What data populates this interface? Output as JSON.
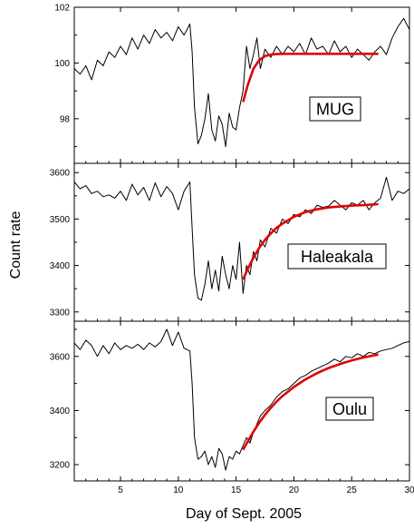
{
  "chart_data": {
    "type": "line",
    "xlabel": "Day of Sept. 2005",
    "ylabel": "Count rate",
    "xlim": [
      1,
      30
    ],
    "x_ticks": [
      5,
      10,
      15,
      20,
      25,
      30
    ],
    "colors": {
      "data": "#000000",
      "fit": "#e00000",
      "frame": "#000000"
    },
    "panels": [
      {
        "station": "MUG",
        "ylim": [
          96.4,
          102
        ],
        "y_ticks": [
          98,
          100,
          102
        ],
        "series": [
          {
            "x": [
              1,
              1.5,
              2,
              2.5,
              3,
              3.5,
              4,
              4.5,
              5,
              5.5,
              6,
              6.5,
              7,
              7.5,
              8,
              8.5,
              9,
              9.5,
              10,
              10.5,
              11,
              11.2,
              11.4,
              11.7,
              12,
              12.3,
              12.6,
              12.9,
              13.2,
              13.5,
              13.8,
              14.1,
              14.4,
              14.7,
              15,
              15.3,
              15.6,
              15.9,
              16.2,
              16.5,
              16.8,
              17.1,
              17.5,
              18,
              18.5,
              19,
              19.5,
              20,
              20.5,
              21,
              21.5,
              22,
              22.5,
              23,
              23.5,
              24,
              24.5,
              25,
              25.5,
              26,
              26.5,
              27,
              27.5,
              28,
              28.5,
              29,
              29.5,
              30
            ],
            "y": [
              99.8,
              99.6,
              99.9,
              99.4,
              100.1,
              99.9,
              100.4,
              100.2,
              100.6,
              100.3,
              100.9,
              100.5,
              101.0,
              100.7,
              101.2,
              100.9,
              101.1,
              100.8,
              101.3,
              101.0,
              101.4,
              100.4,
              98.4,
              97.1,
              97.4,
              98.0,
              98.9,
              97.6,
              97.2,
              98.1,
              97.8,
              97.0,
              98.2,
              97.7,
              97.6,
              98.4,
              99.0,
              100.6,
              99.8,
              100.3,
              100.9,
              99.8,
              100.5,
              100.2,
              100.6,
              100.3,
              100.6,
              100.4,
              100.7,
              100.3,
              100.9,
              100.5,
              100.6,
              100.3,
              100.8,
              100.4,
              100.6,
              100.2,
              100.5,
              100.3,
              100.1,
              100.4,
              100.6,
              100.3,
              100.9,
              101.3,
              101.6,
              101.2
            ]
          },
          {
            "x": [
              15.6,
              16,
              16.5,
              17,
              17.5,
              18,
              18.5,
              19,
              20,
              21,
              22,
              23,
              24,
              25,
              26,
              27.3
            ],
            "y": [
              98.6,
              99.2,
              99.8,
              100.1,
              100.25,
              100.3,
              100.32,
              100.33,
              100.33,
              100.33,
              100.33,
              100.33,
              100.33,
              100.33,
              100.33,
              100.33
            ]
          }
        ]
      },
      {
        "station": "Haleakala",
        "ylim": [
          3280,
          3620
        ],
        "y_ticks": [
          3300,
          3400,
          3500,
          3600
        ],
        "series": [
          {
            "x": [
              1,
              1.5,
              2,
              2.5,
              3,
              3.5,
              4,
              4.5,
              5,
              5.5,
              6,
              6.5,
              7,
              7.5,
              8,
              8.5,
              9,
              9.5,
              10,
              10.5,
              11,
              11.2,
              11.4,
              11.7,
              12,
              12.3,
              12.6,
              12.9,
              13.2,
              13.5,
              13.8,
              14.1,
              14.4,
              14.7,
              15,
              15.3,
              15.6,
              15.9,
              16.2,
              16.5,
              16.8,
              17.1,
              17.5,
              18,
              18.5,
              19,
              19.5,
              20,
              20.5,
              21,
              21.5,
              22,
              22.5,
              23,
              23.5,
              24,
              24.5,
              25,
              25.5,
              26,
              26.5,
              27,
              27.5,
              28,
              28.5,
              29,
              29.5,
              30
            ],
            "y": [
              3580,
              3565,
              3572,
              3555,
              3560,
              3548,
              3552,
              3545,
              3560,
              3540,
              3575,
              3552,
              3568,
              3540,
              3578,
              3548,
              3570,
              3555,
              3520,
              3560,
              3580,
              3480,
              3380,
              3330,
              3325,
              3360,
              3410,
              3350,
              3390,
              3345,
              3420,
              3380,
              3350,
              3400,
              3370,
              3450,
              3340,
              3400,
              3380,
              3430,
              3410,
              3455,
              3440,
              3480,
              3470,
              3500,
              3490,
              3510,
              3505,
              3520,
              3512,
              3530,
              3525,
              3528,
              3540,
              3530,
              3520,
              3535,
              3530,
              3540,
              3520,
              3535,
              3545,
              3590,
              3540,
              3560,
              3555,
              3565
            ]
          },
          {
            "x": [
              15.6,
              16,
              16.5,
              17,
              17.5,
              18,
              18.5,
              19,
              20,
              21,
              22,
              23,
              24,
              25,
              26,
              27.3
            ],
            "y": [
              3370,
              3392,
              3417,
              3438,
              3455,
              3469,
              3481,
              3490,
              3505,
              3515,
              3521,
              3525,
              3527,
              3529,
              3530,
              3532
            ]
          }
        ]
      },
      {
        "station": "Oulu",
        "ylim": [
          3140,
          3730
        ],
        "y_ticks": [
          3200,
          3400,
          3600
        ],
        "series": [
          {
            "x": [
              1,
              1.5,
              2,
              2.5,
              3,
              3.5,
              4,
              4.5,
              5,
              5.5,
              6,
              6.5,
              7,
              7.5,
              8,
              8.5,
              9,
              9.5,
              10,
              10.5,
              11,
              11.2,
              11.4,
              11.7,
              12,
              12.3,
              12.6,
              12.9,
              13.2,
              13.5,
              13.8,
              14.1,
              14.4,
              14.7,
              15,
              15.3,
              15.6,
              15.9,
              16.2,
              16.5,
              16.8,
              17.1,
              17.5,
              18,
              18.5,
              19,
              19.5,
              20,
              20.5,
              21,
              21.5,
              22,
              22.5,
              23,
              23.5,
              24,
              24.5,
              25,
              25.5,
              26,
              26.5,
              27,
              27.5,
              28,
              28.5,
              29,
              29.5,
              30
            ],
            "y": [
              3650,
              3625,
              3660,
              3640,
              3600,
              3640,
              3610,
              3650,
              3625,
              3640,
              3630,
              3645,
              3625,
              3650,
              3635,
              3655,
              3700,
              3640,
              3690,
              3630,
              3620,
              3500,
              3300,
              3220,
              3230,
              3250,
              3200,
              3230,
              3190,
              3260,
              3240,
              3180,
              3230,
              3220,
              3250,
              3240,
              3270,
              3300,
              3280,
              3320,
              3350,
              3380,
              3400,
              3420,
              3450,
              3470,
              3480,
              3500,
              3520,
              3530,
              3545,
              3555,
              3565,
              3575,
              3590,
              3580,
              3600,
              3595,
              3610,
              3600,
              3615,
              3610,
              3620,
              3625,
              3630,
              3640,
              3650,
              3655
            ]
          },
          {
            "x": [
              15.6,
              16,
              16.5,
              17,
              17.5,
              18,
              18.5,
              19,
              20,
              21,
              22,
              23,
              24,
              25,
              26,
              27.3
            ],
            "y": [
              3255,
              3285,
              3322,
              3355,
              3384,
              3410,
              3433,
              3453,
              3487,
              3515,
              3538,
              3557,
              3572,
              3585,
              3596,
              3607
            ]
          }
        ]
      }
    ]
  }
}
